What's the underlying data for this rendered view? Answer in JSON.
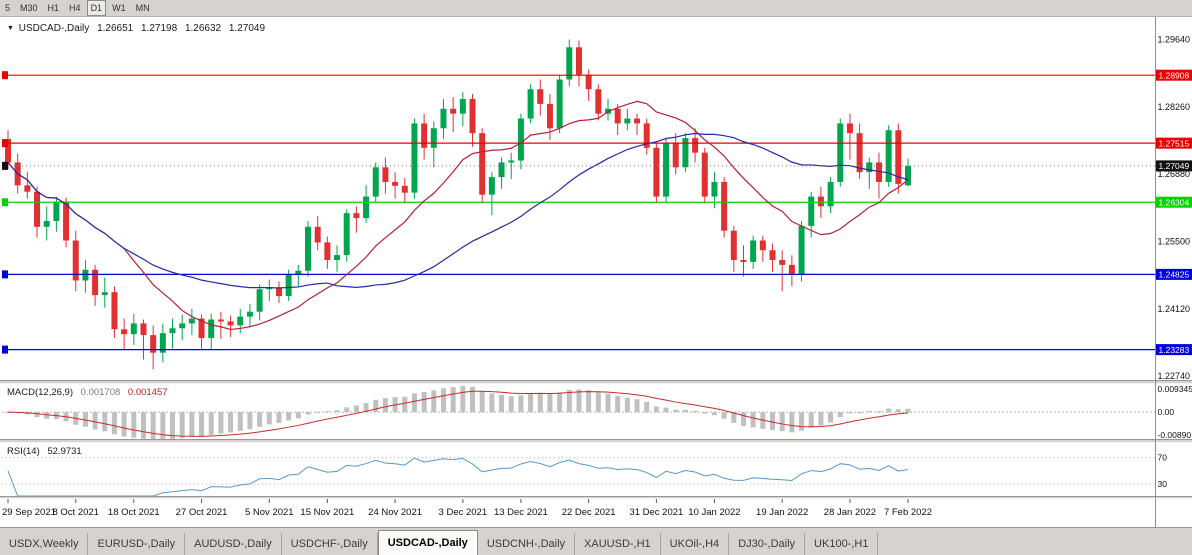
{
  "toolbar": {
    "periods": [
      {
        "label": "5",
        "active": false
      },
      {
        "label": "M30",
        "active": false
      },
      {
        "label": "H1",
        "active": false
      },
      {
        "label": "H4",
        "active": false
      },
      {
        "label": "D1",
        "active": true
      },
      {
        "label": "W1",
        "active": false
      },
      {
        "label": "MN",
        "active": false
      }
    ]
  },
  "chart": {
    "title": {
      "marker": "▼",
      "symbol": "USDCAD-,Daily",
      "open": "1.26651",
      "high": "1.27198",
      "low": "1.26632",
      "close": "1.27049"
    },
    "colors": {
      "bull": "#00A64F",
      "bear": "#E23030",
      "ma_fast": "#B22238",
      "ma_slow": "#2828A8",
      "macd_hist": "#C0C0C0",
      "macd_signal": "#CC2A2A",
      "rsi_line": "#5599CC",
      "axis_text": "#111111"
    },
    "hlines": [
      {
        "price": 1.28908,
        "color": "#E80000"
      },
      {
        "price": 1.27515,
        "color": "#E80000"
      },
      {
        "price": 1.26304,
        "color": "#00D400"
      },
      {
        "price": 1.24825,
        "color": "#0000D8"
      },
      {
        "price": 1.23283,
        "color": "#0000D8"
      }
    ],
    "current_price": {
      "value": 1.27049,
      "color": "#111111"
    },
    "price_axis_ticks": [
      1.2964,
      1.2826,
      1.2688,
      1.255,
      1.2412,
      1.2274
    ]
  },
  "panels": {
    "macd": {
      "label": "MACD(12,26,9)",
      "value_main": "0.001708",
      "value_signal": "0.001457",
      "axis_max": "0.009345",
      "axis_zero": "0.00",
      "axis_min": "-0.00890"
    },
    "rsi": {
      "label": "RSI(14)",
      "value": "52.9731",
      "level_high": "70",
      "level_low": "30"
    }
  },
  "chart_data": {
    "type": "candlestick",
    "title": "USDCAD-,Daily",
    "price_range": [
      1.2266,
      1.3006
    ],
    "macd_range": [
      -0.0089,
      0.009345
    ],
    "rsi_range": [
      12,
      92
    ],
    "rsi_levels": [
      70,
      30
    ],
    "ma_fast_period": 13,
    "ma_slow_period": 34,
    "x_tick_labels": [
      "29 Sep 2021",
      "8 Oct 2021",
      "18 Oct 2021",
      "27 Oct 2021",
      "5 Nov 2021",
      "15 Nov 2021",
      "24 Nov 2021",
      "3 Dec 2021",
      "13 Dec 2021",
      "22 Dec 2021",
      "31 Dec 2021",
      "10 Jan 2022",
      "19 Jan 2022",
      "28 Jan 2022",
      "7 Feb 2022"
    ],
    "x_tick_indices": [
      0,
      7,
      13,
      20,
      27,
      33,
      40,
      47,
      53,
      60,
      67,
      73,
      80,
      87,
      93
    ],
    "candles": [
      [
        1.276,
        1.2778,
        1.2698,
        1.2712
      ],
      [
        1.2712,
        1.273,
        1.2648,
        1.2665
      ],
      [
        1.2665,
        1.2692,
        1.2638,
        1.2652
      ],
      [
        1.2652,
        1.2662,
        1.2558,
        1.258
      ],
      [
        1.258,
        1.2622,
        1.2552,
        1.2592
      ],
      [
        1.2592,
        1.2642,
        1.257,
        1.2632
      ],
      [
        1.2632,
        1.264,
        1.2538,
        1.2552
      ],
      [
        1.2552,
        1.2572,
        1.2448,
        1.247
      ],
      [
        1.247,
        1.2512,
        1.2445,
        1.2492
      ],
      [
        1.2492,
        1.2502,
        1.2418,
        1.244
      ],
      [
        1.244,
        1.2476,
        1.2414,
        1.2446
      ],
      [
        1.2446,
        1.2458,
        1.2352,
        1.237
      ],
      [
        1.237,
        1.2392,
        1.2328,
        1.236
      ],
      [
        1.236,
        1.2402,
        1.2338,
        1.2382
      ],
      [
        1.2382,
        1.239,
        1.2308,
        1.2358
      ],
      [
        1.2358,
        1.2378,
        1.2288,
        1.2322
      ],
      [
        1.2322,
        1.2382,
        1.2302,
        1.2362
      ],
      [
        1.2362,
        1.2392,
        1.233,
        1.2372
      ],
      [
        1.2372,
        1.24,
        1.2348,
        1.2382
      ],
      [
        1.2382,
        1.2412,
        1.2358,
        1.2392
      ],
      [
        1.2392,
        1.24,
        1.233,
        1.2352
      ],
      [
        1.2352,
        1.2402,
        1.2328,
        1.239
      ],
      [
        1.239,
        1.2406,
        1.235,
        1.2386
      ],
      [
        1.2386,
        1.2398,
        1.2354,
        1.2378
      ],
      [
        1.2378,
        1.2412,
        1.2362,
        1.2396
      ],
      [
        1.2396,
        1.2422,
        1.2374,
        1.2406
      ],
      [
        1.2406,
        1.2462,
        1.2388,
        1.2452
      ],
      [
        1.2452,
        1.2472,
        1.2428,
        1.2456
      ],
      [
        1.2456,
        1.2468,
        1.2424,
        1.2438
      ],
      [
        1.2438,
        1.2492,
        1.2428,
        1.2482
      ],
      [
        1.2482,
        1.2502,
        1.2458,
        1.249
      ],
      [
        1.249,
        1.2592,
        1.2478,
        1.258
      ],
      [
        1.258,
        1.2602,
        1.2532,
        1.2548
      ],
      [
        1.2548,
        1.256,
        1.2494,
        1.2512
      ],
      [
        1.2512,
        1.2542,
        1.2488,
        1.2522
      ],
      [
        1.2522,
        1.2616,
        1.2508,
        1.2608
      ],
      [
        1.2608,
        1.2622,
        1.2568,
        1.2598
      ],
      [
        1.2598,
        1.2666,
        1.2588,
        1.2642
      ],
      [
        1.2642,
        1.2712,
        1.263,
        1.2702
      ],
      [
        1.2702,
        1.2722,
        1.2648,
        1.2672
      ],
      [
        1.2672,
        1.2692,
        1.2638,
        1.2664
      ],
      [
        1.2664,
        1.268,
        1.2628,
        1.265
      ],
      [
        1.265,
        1.2802,
        1.2638,
        1.2792
      ],
      [
        1.2792,
        1.2812,
        1.2718,
        1.2742
      ],
      [
        1.2742,
        1.2796,
        1.2702,
        1.2782
      ],
      [
        1.2782,
        1.2842,
        1.276,
        1.2822
      ],
      [
        1.2822,
        1.2846,
        1.2774,
        1.2812
      ],
      [
        1.2812,
        1.2856,
        1.2786,
        1.2842
      ],
      [
        1.2842,
        1.2852,
        1.2744,
        1.2772
      ],
      [
        1.2772,
        1.2782,
        1.2628,
        1.2646
      ],
      [
        1.2646,
        1.2692,
        1.2604,
        1.2682
      ],
      [
        1.2682,
        1.2722,
        1.2658,
        1.2712
      ],
      [
        1.2712,
        1.2732,
        1.2678,
        1.2716
      ],
      [
        1.2716,
        1.2812,
        1.2698,
        1.2802
      ],
      [
        1.2802,
        1.2872,
        1.2792,
        1.2862
      ],
      [
        1.2862,
        1.2882,
        1.2808,
        1.2832
      ],
      [
        1.2832,
        1.2852,
        1.2758,
        1.2782
      ],
      [
        1.2782,
        1.2892,
        1.2772,
        1.2882
      ],
      [
        1.2882,
        1.2964,
        1.2868,
        1.2948
      ],
      [
        1.2948,
        1.2962,
        1.2868,
        1.2892
      ],
      [
        1.2892,
        1.2902,
        1.2838,
        1.2862
      ],
      [
        1.2862,
        1.2872,
        1.2798,
        1.2812
      ],
      [
        1.2812,
        1.2842,
        1.2798,
        1.2822
      ],
      [
        1.2822,
        1.2832,
        1.2768,
        1.2792
      ],
      [
        1.2792,
        1.2822,
        1.2778,
        1.2802
      ],
      [
        1.2802,
        1.2812,
        1.2768,
        1.2792
      ],
      [
        1.2792,
        1.2802,
        1.2728,
        1.2742
      ],
      [
        1.2742,
        1.2752,
        1.2628,
        1.2642
      ],
      [
        1.2642,
        1.2762,
        1.263,
        1.2752
      ],
      [
        1.2752,
        1.2772,
        1.2688,
        1.2702
      ],
      [
        1.2702,
        1.2772,
        1.2692,
        1.2762
      ],
      [
        1.2762,
        1.2782,
        1.2712,
        1.2732
      ],
      [
        1.2732,
        1.2742,
        1.2628,
        1.2642
      ],
      [
        1.2642,
        1.2692,
        1.2618,
        1.2672
      ],
      [
        1.2672,
        1.2682,
        1.2558,
        1.2572
      ],
      [
        1.2572,
        1.2582,
        1.2488,
        1.2512
      ],
      [
        1.2512,
        1.2542,
        1.2478,
        1.2508
      ],
      [
        1.2508,
        1.2562,
        1.2494,
        1.2552
      ],
      [
        1.2552,
        1.2562,
        1.2508,
        1.2532
      ],
      [
        1.2532,
        1.2546,
        1.2488,
        1.2512
      ],
      [
        1.2512,
        1.2532,
        1.2448,
        1.2502
      ],
      [
        1.2502,
        1.2522,
        1.2458,
        1.2482
      ],
      [
        1.2482,
        1.2592,
        1.2468,
        1.2582
      ],
      [
        1.2582,
        1.2652,
        1.2558,
        1.2642
      ],
      [
        1.2642,
        1.2662,
        1.2598,
        1.2622
      ],
      [
        1.2622,
        1.2682,
        1.2608,
        1.2672
      ],
      [
        1.2672,
        1.2802,
        1.2662,
        1.2792
      ],
      [
        1.2792,
        1.2812,
        1.2718,
        1.2772
      ],
      [
        1.2772,
        1.2792,
        1.2678,
        1.2692
      ],
      [
        1.2692,
        1.2722,
        1.2658,
        1.2712
      ],
      [
        1.2712,
        1.2732,
        1.2638,
        1.2672
      ],
      [
        1.2672,
        1.2788,
        1.2662,
        1.2778
      ],
      [
        1.2778,
        1.2792,
        1.2648,
        1.2668
      ],
      [
        1.26651,
        1.27198,
        1.26632,
        1.27049
      ]
    ]
  },
  "tabs": {
    "active_index": 4,
    "items": [
      "USDX,Weekly",
      "EURUSD-,Daily",
      "AUDUSD-,Daily",
      "USDCHF-,Daily",
      "USDCAD-,Daily",
      "USDCNH-,Daily",
      "XAUUSD-,H1",
      "UKOil-,H4",
      "DJ30-,Daily",
      "UK100-,H1"
    ]
  }
}
